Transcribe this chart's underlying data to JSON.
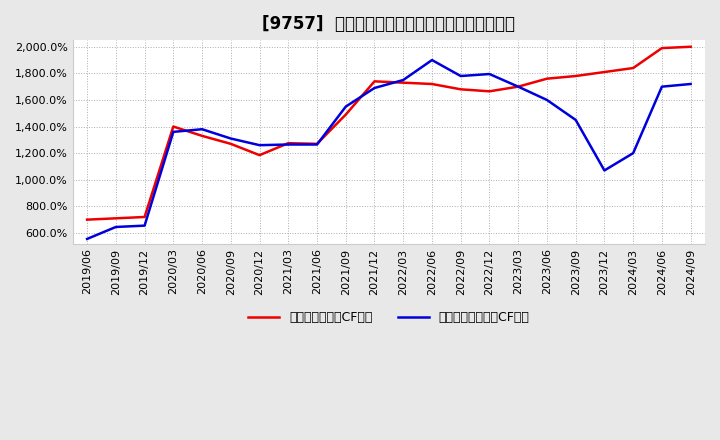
{
  "title": "[9757]  有利子負債キャッシュフロー比率の推移",
  "x_labels": [
    "2019/06",
    "2019/09",
    "2019/12",
    "2020/03",
    "2020/06",
    "2020/09",
    "2020/12",
    "2021/03",
    "2021/06",
    "2021/09",
    "2021/12",
    "2022/03",
    "2022/06",
    "2022/09",
    "2022/12",
    "2023/03",
    "2023/06",
    "2023/09",
    "2023/12",
    "2024/03",
    "2024/06",
    "2024/09"
  ],
  "red_values": [
    700,
    710,
    720,
    1400,
    1330,
    1270,
    1185,
    1275,
    1270,
    1490,
    1740,
    1730,
    1720,
    1680,
    1665,
    1700,
    1760,
    1780,
    1810,
    1840,
    1990,
    2000
  ],
  "blue_values": [
    555,
    645,
    655,
    1360,
    1380,
    1310,
    1260,
    1265,
    1265,
    1550,
    1690,
    1750,
    1900,
    1780,
    1795,
    1700,
    1600,
    1450,
    1070,
    1200,
    1700,
    1720
  ],
  "red_color": "#ee0000",
  "blue_color": "#0000dd",
  "legend_red": "有利子負債営業CF比率",
  "legend_blue": "有利子負債フリーCF比率",
  "ylim": [
    520,
    2050
  ],
  "yticks": [
    600,
    800,
    1000,
    1200,
    1400,
    1600,
    1800,
    2000
  ],
  "bg_color": "#e8e8e8",
  "plot_bg_color": "#ffffff",
  "grid_color": "#999999"
}
